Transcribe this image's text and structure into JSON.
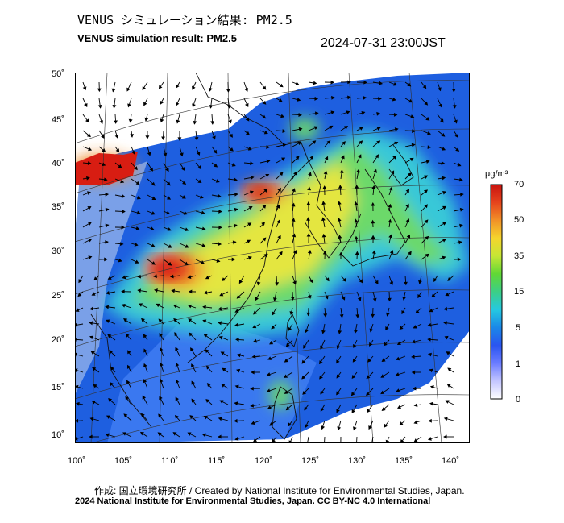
{
  "header": {
    "title_jp": "VENUS シミュレーション結果: PM2.5",
    "title_en": "VENUS simulation result: PM2.5",
    "timestamp": "2024-07-31 23:00JST"
  },
  "map": {
    "lat_labels": [
      "50˚",
      "45˚",
      "40˚",
      "35˚",
      "30˚",
      "25˚",
      "20˚",
      "15˚",
      "10˚"
    ],
    "lon_labels": [
      "100˚",
      "105˚",
      "110˚",
      "115˚",
      "120˚",
      "125˚",
      "130˚",
      "135˚",
      "140˚"
    ],
    "lat_range": [
      9,
      51
    ],
    "lon_range": [
      100,
      141
    ],
    "fill_colors": {
      "ocean_high": "#1e5fe0",
      "ocean_low": "#3a78f0",
      "land_low": "#7aa0e8",
      "moderate": "#37c8d8",
      "elevated": "#6cd96a",
      "high": "#e4e640",
      "very_high": "#ee8a2a",
      "extreme": "#d81d12"
    }
  },
  "colorbar": {
    "unit": "μg/m³",
    "tick_labels": [
      "70",
      "50",
      "35",
      "15",
      "5",
      "1",
      "0"
    ],
    "colors": [
      "#ffffff",
      "#c4c6ff",
      "#6a7cff",
      "#2a55f0",
      "#1a88e8",
      "#25c9e0",
      "#3ccf86",
      "#61d835",
      "#c6e635",
      "#f5d52d",
      "#f29128",
      "#e5431c",
      "#c9140f"
    ]
  },
  "footer": {
    "credit": "作成: 国立環境研究所 / Created by National Institute for Environmental Studies, Japan.",
    "license": "2024 National Institute for Environmental Studies, Japan. CC BY-NC 4.0 International"
  }
}
